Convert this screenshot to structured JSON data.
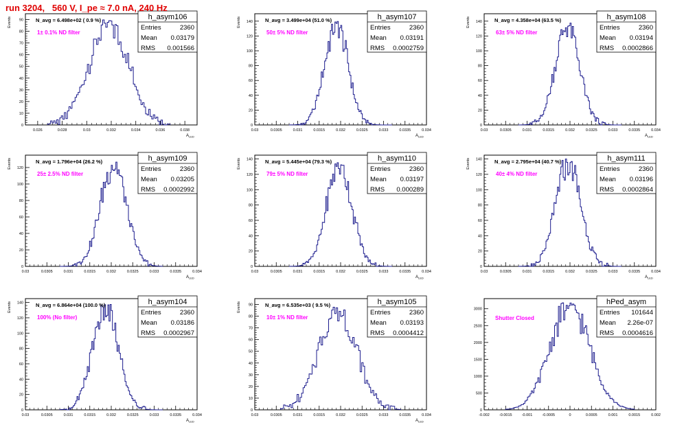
{
  "page_title": "run 3204,   560 V, I_pe ≈ 7.0 nA, 240 Hz",
  "stat_labels": {
    "entries": "Entries",
    "mean": "Mean",
    "rms": "RMS"
  },
  "colors": {
    "histogram": "#1a1a8c",
    "annotation": "#ff00ff",
    "title": "#e00000"
  },
  "chart_data": [
    {
      "type": "histogram",
      "name": "h_asym106",
      "ylabel": "Events",
      "xlabel": "A_LED",
      "xlim": [
        0.025,
        0.039
      ],
      "ylim": [
        0,
        95
      ],
      "xticks": [
        0.026,
        0.028,
        0.03,
        0.032,
        0.034,
        0.036,
        0.038
      ],
      "xtick_labels": [
        "0.026",
        "0.028",
        "0.03",
        "0.032",
        "0.034",
        "0.036",
        "0.038"
      ],
      "yticks": [
        0,
        10,
        20,
        30,
        40,
        50,
        60,
        70,
        80,
        90
      ],
      "stats": {
        "entries": "2360",
        "mean": "0.03179",
        "rms": "0.001566"
      },
      "n_avg": "N_avg = 6.498e+02 ( 0.9 %)",
      "annotation": "1± 0.1% ND filter",
      "peak": 90,
      "mu": 0.0318,
      "sigma": 0.0016,
      "bins": 80,
      "nrange": [
        0.0268,
        0.0368
      ]
    },
    {
      "type": "histogram",
      "name": "h_asym107",
      "ylabel": "Events",
      "xlabel": "A_LED",
      "xlim": [
        0.03,
        0.034
      ],
      "ylim": [
        0,
        150
      ],
      "xticks": [
        0.03,
        0.0305,
        0.031,
        0.0315,
        0.032,
        0.0325,
        0.033,
        0.0335,
        0.034
      ],
      "xtick_labels": [
        "0.03",
        "0.0305",
        "0.031",
        "0.0315",
        "0.032",
        "0.0325",
        "0.033",
        "0.0335",
        "0.034"
      ],
      "yticks": [
        0,
        20,
        40,
        60,
        80,
        100,
        120,
        140
      ],
      "stats": {
        "entries": "2360",
        "mean": "0.03191",
        "rms": "0.0002759"
      },
      "n_avg": "N_avg = 3.499e+04 (51.0 %)",
      "annotation": "50± 5% ND filter",
      "peak": 140,
      "mu": 0.0319,
      "sigma": 0.00027,
      "bins": 90,
      "nrange": [
        0.0308,
        0.0332
      ]
    },
    {
      "type": "histogram",
      "name": "h_asym108",
      "ylabel": "Events",
      "xlabel": "A_LED",
      "xlim": [
        0.03,
        0.034
      ],
      "ylim": [
        0,
        150
      ],
      "xticks": [
        0.03,
        0.0305,
        0.031,
        0.0315,
        0.032,
        0.0325,
        0.033,
        0.0335,
        0.034
      ],
      "xtick_labels": [
        "0.03",
        "0.0305",
        "0.031",
        "0.0315",
        "0.032",
        "0.0325",
        "0.033",
        "0.0335",
        "0.034"
      ],
      "yticks": [
        0,
        20,
        40,
        60,
        80,
        100,
        120,
        140
      ],
      "stats": {
        "entries": "2360",
        "mean": "0.03194",
        "rms": "0.0002866"
      },
      "n_avg": "N_avg = 4.358e+04 (63.5 %)",
      "annotation": "63± 5% ND filter",
      "peak": 138,
      "mu": 0.03194,
      "sigma": 0.00028,
      "bins": 90,
      "nrange": [
        0.0308,
        0.0332
      ]
    },
    {
      "type": "histogram",
      "name": "h_asym109",
      "ylabel": "Events",
      "xlabel": "A_LED",
      "xlim": [
        0.03,
        0.034
      ],
      "ylim": [
        0,
        135
      ],
      "xticks": [
        0.03,
        0.0305,
        0.031,
        0.0315,
        0.032,
        0.0325,
        0.033,
        0.0335,
        0.034
      ],
      "xtick_labels": [
        "0.03",
        "0.0305",
        "0.031",
        "0.0315",
        "0.032",
        "0.0325",
        "0.033",
        "0.0335",
        "0.034"
      ],
      "yticks": [
        0,
        20,
        40,
        60,
        80,
        100,
        120
      ],
      "stats": {
        "entries": "2360",
        "mean": "0.03205",
        "rms": "0.0002992"
      },
      "n_avg": "N_avg = 1.796e+04 (26.2 %)",
      "annotation": "25± 2.5% ND filter",
      "peak": 128,
      "mu": 0.03205,
      "sigma": 0.0003,
      "bins": 90,
      "nrange": [
        0.0308,
        0.0332
      ]
    },
    {
      "type": "histogram",
      "name": "h_asym110",
      "ylabel": "Events",
      "xlabel": "A_LED",
      "xlim": [
        0.03,
        0.034
      ],
      "ylim": [
        0,
        145
      ],
      "xticks": [
        0.03,
        0.0305,
        0.031,
        0.0315,
        0.032,
        0.0325,
        0.033,
        0.0335,
        0.034
      ],
      "xtick_labels": [
        "0.03",
        "0.0305",
        "0.031",
        "0.0315",
        "0.032",
        "0.0325",
        "0.033",
        "0.0335",
        "0.034"
      ],
      "yticks": [
        0,
        20,
        40,
        60,
        80,
        100,
        120,
        140
      ],
      "stats": {
        "entries": "2360",
        "mean": "0.03197",
        "rms": "0.000289"
      },
      "n_avg": "N_avg = 5.445e+04 (79.3 %)",
      "annotation": "79± 5% ND filter",
      "peak": 137,
      "mu": 0.03197,
      "sigma": 0.00029,
      "bins": 90,
      "nrange": [
        0.0308,
        0.0332
      ]
    },
    {
      "type": "histogram",
      "name": "h_asym111",
      "ylabel": "Events",
      "xlabel": "A_LED",
      "xlim": [
        0.03,
        0.034
      ],
      "ylim": [
        0,
        145
      ],
      "xticks": [
        0.03,
        0.0305,
        0.031,
        0.0315,
        0.032,
        0.0325,
        0.033,
        0.0335,
        0.034
      ],
      "xtick_labels": [
        "0.03",
        "0.0305",
        "0.031",
        "0.0315",
        "0.032",
        "0.0325",
        "0.033",
        "0.0335",
        "0.034"
      ],
      "yticks": [
        0,
        20,
        40,
        60,
        80,
        100,
        120,
        140
      ],
      "stats": {
        "entries": "2360",
        "mean": "0.03196",
        "rms": "0.0002864"
      },
      "n_avg": "N_avg = 2.795e+04 (40.7 %)",
      "annotation": "40± 4% ND filter",
      "peak": 140,
      "mu": 0.03196,
      "sigma": 0.00029,
      "bins": 90,
      "nrange": [
        0.0308,
        0.0332
      ]
    },
    {
      "type": "histogram",
      "name": "h_asym104",
      "ylabel": "Events",
      "xlabel": "A_LED",
      "xlim": [
        0.03,
        0.034
      ],
      "ylim": [
        0,
        145
      ],
      "xticks": [
        0.03,
        0.0305,
        0.031,
        0.0315,
        0.032,
        0.0325,
        0.033,
        0.0335,
        0.034
      ],
      "xtick_labels": [
        "0.03",
        "0.0305",
        "0.031",
        "0.0315",
        "0.032",
        "0.0325",
        "0.033",
        "0.0335",
        "0.034"
      ],
      "yticks": [
        0,
        20,
        40,
        60,
        80,
        100,
        120,
        140
      ],
      "stats": {
        "entries": "2360",
        "mean": "0.03186",
        "rms": "0.0002967"
      },
      "n_avg": "N_avg = 6.864e+04 (100.0 %)",
      "annotation": "100% (No filter)",
      "peak": 138,
      "mu": 0.03186,
      "sigma": 0.0003,
      "bins": 90,
      "nrange": [
        0.0308,
        0.0332
      ]
    },
    {
      "type": "histogram",
      "name": "h_asym105",
      "ylabel": "Events",
      "xlabel": "A_LED",
      "xlim": [
        0.03,
        0.034
      ],
      "ylim": [
        0,
        95
      ],
      "xticks": [
        0.03,
        0.0305,
        0.031,
        0.0315,
        0.032,
        0.0325,
        0.033,
        0.0335,
        0.034
      ],
      "xtick_labels": [
        "0.03",
        "0.0305",
        "0.031",
        "0.0315",
        "0.032",
        "0.0325",
        "0.033",
        "0.0335",
        "0.034"
      ],
      "yticks": [
        0,
        10,
        20,
        30,
        40,
        50,
        60,
        70,
        80,
        90
      ],
      "stats": {
        "entries": "2360",
        "mean": "0.03193",
        "rms": "0.0004412"
      },
      "n_avg": "N_avg = 6.535e+03 ( 9.5 %)",
      "annotation": "10± 1% ND filter",
      "peak": 89,
      "mu": 0.03193,
      "sigma": 0.00044,
      "bins": 80,
      "nrange": [
        0.0306,
        0.0334
      ]
    },
    {
      "type": "histogram",
      "name": "hPed_asym",
      "ylabel": "",
      "xlabel": "",
      "xlim": [
        -0.002,
        0.002
      ],
      "ylim": [
        0,
        3300
      ],
      "xticks": [
        -0.002,
        -0.0015,
        -0.001,
        -0.0005,
        0,
        0.0005,
        0.001,
        0.0015,
        0.002
      ],
      "xtick_labels": [
        "-0.002",
        "-0.0015",
        "-0.001",
        "-0.0005",
        "0",
        "0.0005",
        "0.001",
        "0.0015",
        "0.002"
      ],
      "yticks": [
        0,
        500,
        1000,
        1500,
        2000,
        2500,
        3000
      ],
      "stats": {
        "entries": "101644",
        "mean": "2.26e-07",
        "rms": "0.0004616"
      },
      "n_avg": "",
      "annotation": "Shutter Closed",
      "peak": 3200,
      "mu": 0.0,
      "sigma": 0.00046,
      "bins": 100,
      "nrange": [
        -0.0015,
        0.0015
      ]
    }
  ]
}
